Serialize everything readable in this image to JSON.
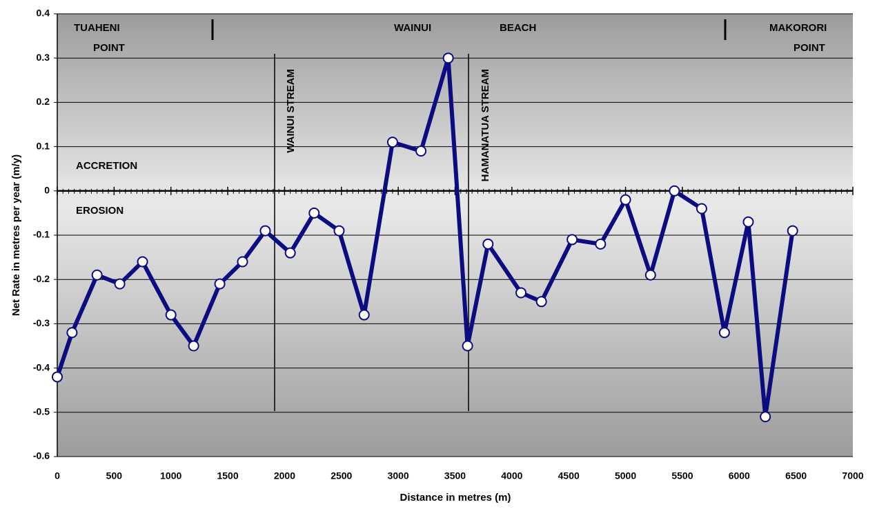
{
  "chart_data": {
    "type": "line",
    "x_label": "Distance in metres (m)",
    "y_label": "Net Rate in metres per year (m/y)",
    "annotations": [
      "TUAHENI",
      "POINT",
      "WAINUI",
      "BEACH",
      "MAKORORI",
      "POINT",
      "ACCRETION",
      "EROSION",
      "WAINUI STREAM",
      "HAMANATUA STREAM"
    ],
    "x": [
      0,
      130,
      350,
      550,
      750,
      1000,
      1200,
      1430,
      1630,
      1830,
      2050,
      2260,
      2480,
      2700,
      2950,
      3200,
      3440,
      3610,
      3790,
      4080,
      4260,
      4530,
      4780,
      5000,
      5220,
      5430,
      5670,
      5870,
      6080,
      6230,
      6470
    ],
    "series": [
      {
        "color": "#0c0c80",
        "values": [
          -0.42,
          -0.32,
          -0.19,
          -0.21,
          -0.16,
          -0.28,
          -0.35,
          -0.21,
          -0.16,
          -0.09,
          -0.14,
          -0.05,
          -0.09,
          -0.28,
          0.11,
          0.09,
          0.3,
          -0.35,
          -0.12,
          -0.23,
          -0.25,
          -0.11,
          -0.12,
          -0.02,
          -0.19,
          0,
          -0.04,
          -0.32,
          -0.07,
          -0.51,
          -0.09
        ]
      }
    ],
    "xlim": [
      0,
      7000
    ],
    "xticks": [
      0,
      500,
      1000,
      1500,
      2000,
      2500,
      3000,
      3500,
      4000,
      4500,
      5000,
      5500,
      6000,
      6500,
      7000
    ],
    "ylim": [
      -0.6,
      0.4
    ],
    "yticks": [
      -0.6,
      -0.5,
      -0.4,
      -0.3,
      -0.2,
      -0.1,
      0,
      0.1,
      0.2,
      0.3,
      0.4
    ],
    "grid": true
  }
}
